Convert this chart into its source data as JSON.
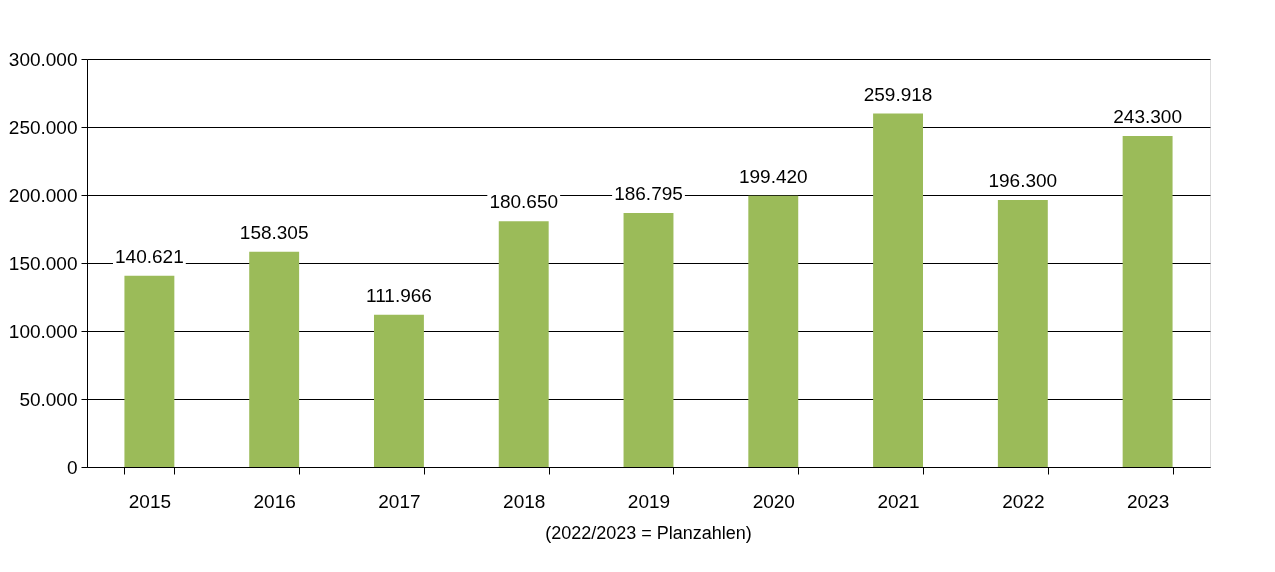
{
  "chart_data": {
    "type": "bar",
    "categories": [
      "2015",
      "2016",
      "2017",
      "2018",
      "2019",
      "2020",
      "2021",
      "2022",
      "2023"
    ],
    "values": [
      140621,
      158305,
      111966,
      180650,
      186795,
      199420,
      259918,
      196300,
      243300
    ],
    "value_labels": [
      "140.621",
      "158.305",
      "111.966",
      "180.650",
      "186.795",
      "199.420",
      "259.918",
      "196.300",
      "243.300"
    ],
    "color": "#9bbb59",
    "ylim": [
      0,
      300000
    ],
    "yticks": [
      {
        "value": 0,
        "label": "0"
      },
      {
        "value": 50000,
        "label": "50.000"
      },
      {
        "value": 100000,
        "label": "100.000"
      },
      {
        "value": 150000,
        "label": "150.000"
      },
      {
        "value": 200000,
        "label": "200.000"
      },
      {
        "value": 250000,
        "label": "250.000"
      },
      {
        "value": 300000,
        "label": "300.000"
      }
    ],
    "grid": "y",
    "annotations": [
      "(2022/2023 = Planzahlen)"
    ]
  }
}
